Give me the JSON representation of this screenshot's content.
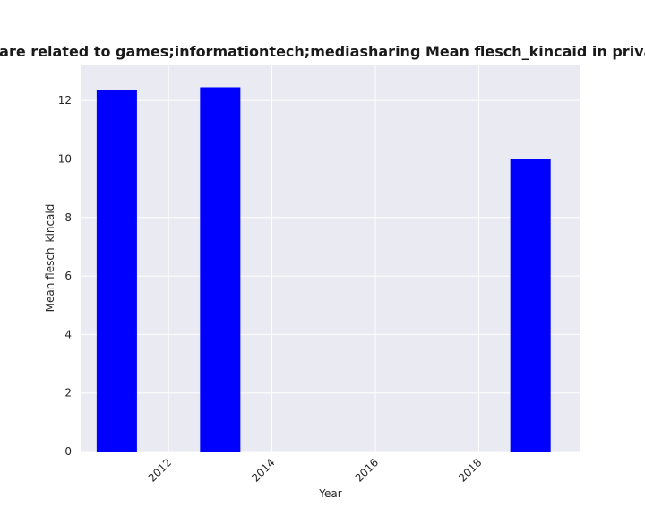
{
  "chart_data": {
    "type": "bar",
    "title": "Categories are related to games;informationtech;mediasharing Mean flesch_kincaid in privacy policies",
    "xlabel": "Year",
    "ylabel": "Mean flesch_kincaid",
    "x": [
      2011,
      2013,
      2019
    ],
    "values": [
      12.35,
      12.45,
      10.0
    ],
    "bar_width_years": 0.78,
    "xlim": [
      2010.3,
      2019.95
    ],
    "ylim": [
      0,
      13.2
    ],
    "x_ticks": [
      2012,
      2014,
      2016,
      2018
    ],
    "y_ticks": [
      0,
      2,
      4,
      6,
      8,
      10,
      12
    ],
    "x_tick_rotation": 45,
    "grid": true,
    "legend": "none",
    "colors": {
      "bar": "#0000ff",
      "plot_background": "#eaeaf2",
      "grid": "#ffffff",
      "page_background": "#ffffff"
    }
  }
}
